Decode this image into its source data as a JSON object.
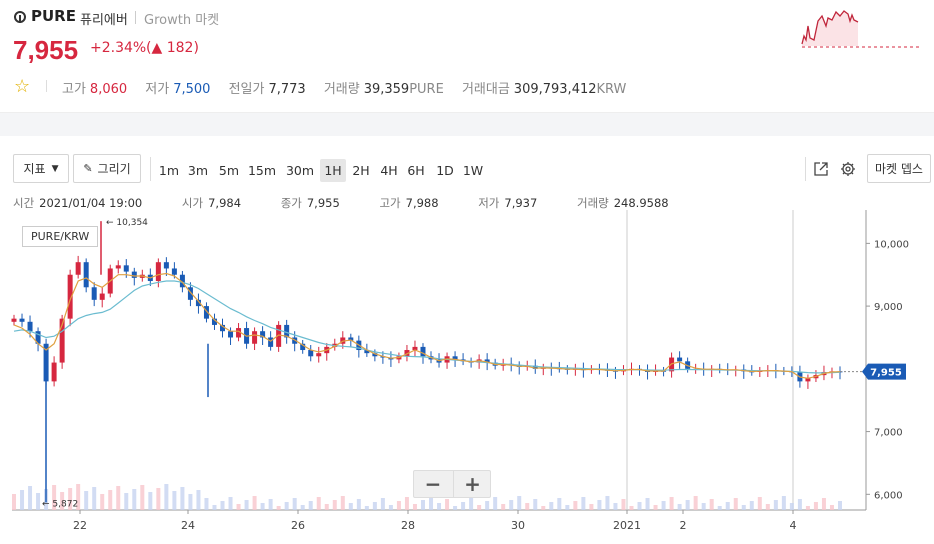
{
  "header": {
    "symbol": "PURE",
    "name_kr": "퓨리에버",
    "market": "Growth 마켓",
    "price": "7,955",
    "change_pct": "+2.34%",
    "change_abs": "182",
    "change_arrow": "▲",
    "star": "☆"
  },
  "stats": {
    "high_label": "고가",
    "high": "8,060",
    "low_label": "저가",
    "low": "7,500",
    "prev_label": "전일가",
    "prev": "7,773",
    "vol_label": "거래량",
    "vol": "39,359",
    "vol_unit": "PURE",
    "val_label": "거래대금",
    "val": "309,793,412",
    "val_unit": "KRW"
  },
  "colors": {
    "up": "#d6273f",
    "down": "#1a5bb5",
    "ma1": "#e0a040",
    "ma2": "#6bbcd0",
    "tag": "#1a5bb5"
  },
  "toolbar": {
    "indicator": "지표",
    "draw": "그리기",
    "intervals": [
      "1m",
      "3m",
      "5m",
      "15m",
      "30m",
      "1H",
      "2H",
      "4H",
      "6H",
      "1D",
      "1W"
    ],
    "active_interval": "1H",
    "depth": "마켓 뎁스",
    "external_icon": "external-link-icon",
    "settings_icon": "gear-icon"
  },
  "ohlc": {
    "time_label": "시간",
    "time": "2021/01/04 19:00",
    "open_label": "시가",
    "open": "7,984",
    "close_label": "종가",
    "close": "7,955",
    "high_label": "고가",
    "high": "7,988",
    "low_label": "저가",
    "low": "7,937",
    "vol_label": "거래량",
    "vol": "248.9588"
  },
  "chart_data": {
    "type": "candlestick",
    "pair": "PURE/KRW",
    "y_ticks": [
      "10,000",
      "9,000",
      "8,000",
      "7,000",
      "6,000"
    ],
    "y_tick_values": [
      10000,
      9000,
      8000,
      7000,
      6000
    ],
    "x_ticks": [
      "22",
      "24",
      "26",
      "28",
      "30",
      "2021",
      "2",
      "4"
    ],
    "ylim": [
      5750,
      10500
    ],
    "max_marker": "← 10,354",
    "min_marker": "← 5,872",
    "last_price_tag": "7,955",
    "close_series": [
      8800,
      8750,
      8600,
      8400,
      7800,
      8100,
      8800,
      9500,
      9700,
      9300,
      9100,
      9200,
      9600,
      9650,
      9550,
      9450,
      9500,
      9400,
      9700,
      9600,
      9500,
      9300,
      9100,
      9000,
      8800,
      8700,
      8600,
      8500,
      8650,
      8400,
      8600,
      8500,
      8350,
      8700,
      8500,
      8400,
      8300,
      8200,
      8250,
      8350,
      8400,
      8500,
      8450,
      8300,
      8250,
      8200,
      8180,
      8150,
      8200,
      8300,
      8350,
      8200,
      8150,
      8100,
      8200,
      8150,
      8120,
      8100,
      8150,
      8100,
      8050,
      8080,
      8060,
      8030,
      8050,
      8000,
      8020,
      8010,
      8000,
      7990,
      8000,
      7980,
      8000,
      7990,
      7970,
      7960,
      7980,
      8000,
      7990,
      7950,
      7970,
      7960,
      8180,
      8120,
      8000,
      8000,
      7990,
      8000,
      7990,
      7980,
      7990,
      7960,
      7950,
      7970,
      7980,
      7970,
      7960,
      7950,
      7800,
      7850,
      7900,
      7950,
      7960,
      7955
    ],
    "ma_fast": [
      8700,
      8650,
      8550,
      8400,
      8300,
      8400,
      8700,
      9100,
      9400,
      9450,
      9350,
      9300,
      9400,
      9500,
      9500,
      9480,
      9480,
      9450,
      9500,
      9520,
      9480,
      9380,
      9220,
      9080,
      8920,
      8780,
      8680,
      8600,
      8600,
      8520,
      8540,
      8520,
      8440,
      8540,
      8520,
      8460,
      8380,
      8300,
      8270,
      8300,
      8360,
      8440,
      8460,
      8380,
      8300,
      8240,
      8200,
      8170,
      8180,
      8240,
      8300,
      8250,
      8180,
      8130,
      8160,
      8150,
      8130,
      8110,
      8130,
      8110,
      8070,
      8070,
      8060,
      8040,
      8040,
      8010,
      8015,
      8012,
      8005,
      7995,
      7995,
      7985,
      7992,
      7990,
      7978,
      7968,
      7975,
      7990,
      7990,
      7965,
      7965,
      7962,
      8080,
      8110,
      8050,
      8010,
      7995,
      7995,
      7992,
      7985,
      7986,
      7970,
      7958,
      7962,
      7972,
      7972,
      7964,
      7955,
      7870,
      7850,
      7880,
      7925,
      7950,
      7955
    ],
    "ma_slow": [
      8600,
      8620,
      8600,
      8550,
      8500,
      8520,
      8600,
      8700,
      8800,
      8850,
      8880,
      8900,
      8950,
      9050,
      9150,
      9250,
      9320,
      9350,
      9380,
      9400,
      9400,
      9380,
      9340,
      9280,
      9200,
      9120,
      9040,
      8960,
      8900,
      8830,
      8770,
      8720,
      8660,
      8620,
      8580,
      8540,
      8500,
      8460,
      8420,
      8390,
      8370,
      8360,
      8350,
      8330,
      8300,
      8270,
      8250,
      8230,
      8210,
      8200,
      8195,
      8190,
      8180,
      8160,
      8150,
      8140,
      8130,
      8120,
      8110,
      8100,
      8090,
      8080,
      8070,
      8060,
      8050,
      8040,
      8030,
      8025,
      8020,
      8015,
      8010,
      8005,
      8000,
      7998,
      7995,
      7990,
      7988,
      7986,
      7985,
      7982,
      7980,
      7978,
      7985,
      7990,
      7990,
      7988,
      7986,
      7985,
      7983,
      7980,
      7978,
      7975,
      7972,
      7970,
      7968,
      7966,
      7964,
      7960,
      7950,
      7940,
      7935,
      7935,
      7940,
      7945
    ],
    "grid": true
  }
}
